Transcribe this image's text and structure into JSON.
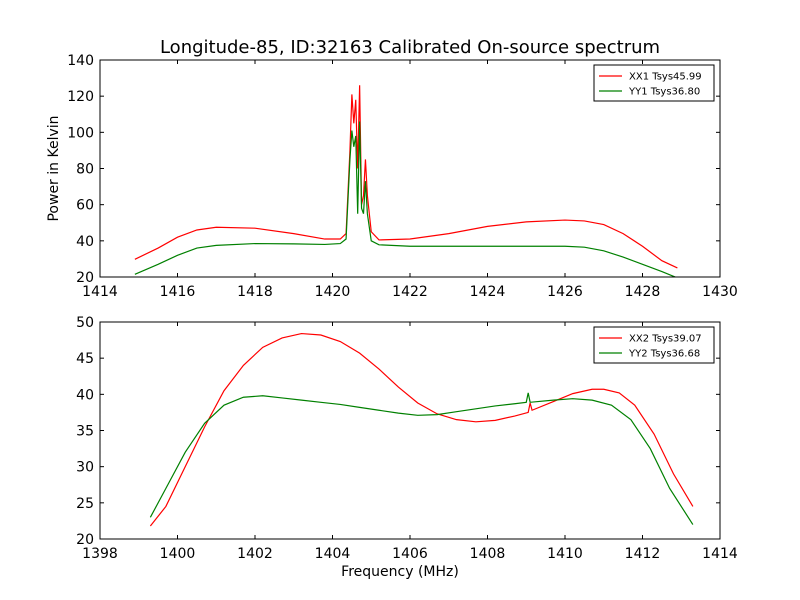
{
  "figure": {
    "title": "Longitude-85, ID:32163 Calibrated On-source spectrum"
  },
  "chart_data": [
    {
      "type": "line",
      "title": "Longitude-85, ID:32163 Calibrated On-source spectrum",
      "xlabel": "",
      "ylabel": "Power in Kelvin",
      "xlim": [
        1414,
        1430
      ],
      "ylim": [
        20,
        140
      ],
      "xticks": [
        1414,
        1416,
        1418,
        1420,
        1422,
        1424,
        1426,
        1428,
        1430
      ],
      "yticks": [
        20,
        40,
        60,
        80,
        100,
        120,
        140
      ],
      "grid": false,
      "legend": "top-right",
      "series": [
        {
          "name": "XX1 Tsys45.99",
          "color": "#ff0000",
          "points": [
            [
              1414.9,
              29.8
            ],
            [
              1415.5,
              36
            ],
            [
              1416,
              42
            ],
            [
              1416.5,
              46
            ],
            [
              1417,
              47.5
            ],
            [
              1418,
              47
            ],
            [
              1419,
              44
            ],
            [
              1419.8,
              41
            ],
            [
              1420.2,
              41
            ],
            [
              1420.35,
              44
            ],
            [
              1420.45,
              90
            ],
            [
              1420.5,
              121
            ],
            [
              1420.55,
              105
            ],
            [
              1420.6,
              118
            ],
            [
              1420.65,
              80
            ],
            [
              1420.7,
              126
            ],
            [
              1420.75,
              60
            ],
            [
              1420.8,
              65
            ],
            [
              1420.85,
              85
            ],
            [
              1420.9,
              65
            ],
            [
              1421,
              45
            ],
            [
              1421.2,
              40.5
            ],
            [
              1422,
              41
            ],
            [
              1423,
              44
            ],
            [
              1424,
              48
            ],
            [
              1425,
              50.5
            ],
            [
              1426,
              51.5
            ],
            [
              1426.5,
              51
            ],
            [
              1427,
              49
            ],
            [
              1427.5,
              44
            ],
            [
              1428,
              37
            ],
            [
              1428.5,
              29
            ],
            [
              1428.9,
              25
            ]
          ]
        },
        {
          "name": "YY1 Tsys36.80",
          "color": "#008000",
          "points": [
            [
              1414.9,
              21.5
            ],
            [
              1415.5,
              27
            ],
            [
              1416,
              32
            ],
            [
              1416.5,
              36
            ],
            [
              1417,
              37.5
            ],
            [
              1418,
              38.5
            ],
            [
              1419,
              38.3
            ],
            [
              1419.8,
              38
            ],
            [
              1420.2,
              38.5
            ],
            [
              1420.35,
              41
            ],
            [
              1420.45,
              85
            ],
            [
              1420.5,
              101
            ],
            [
              1420.55,
              92
            ],
            [
              1420.6,
              98
            ],
            [
              1420.65,
              55
            ],
            [
              1420.7,
              106
            ],
            [
              1420.75,
              58
            ],
            [
              1420.8,
              55
            ],
            [
              1420.85,
              73
            ],
            [
              1420.9,
              55
            ],
            [
              1421,
              40
            ],
            [
              1421.2,
              37.8
            ],
            [
              1422,
              37
            ],
            [
              1424,
              37
            ],
            [
              1426,
              37
            ],
            [
              1426.5,
              36.5
            ],
            [
              1427,
              34.5
            ],
            [
              1427.5,
              31
            ],
            [
              1428,
              27
            ],
            [
              1428.5,
              23
            ],
            [
              1428.9,
              19.5
            ]
          ]
        }
      ]
    },
    {
      "type": "line",
      "title": "",
      "xlabel": "Frequency (MHz)",
      "ylabel": "",
      "xlim": [
        1398,
        1414
      ],
      "ylim": [
        20,
        50
      ],
      "xticks": [
        1398,
        1400,
        1402,
        1404,
        1406,
        1408,
        1410,
        1412,
        1414
      ],
      "yticks": [
        20,
        25,
        30,
        35,
        40,
        45,
        50
      ],
      "grid": false,
      "legend": "top-right",
      "series": [
        {
          "name": "XX2 Tsys39.07",
          "color": "#ff0000",
          "points": [
            [
              1399.3,
              21.8
            ],
            [
              1399.7,
              24.5
            ],
            [
              1400.2,
              30
            ],
            [
              1400.7,
              35.5
            ],
            [
              1401.2,
              40.5
            ],
            [
              1401.7,
              44
            ],
            [
              1402.2,
              46.5
            ],
            [
              1402.7,
              47.8
            ],
            [
              1403.2,
              48.4
            ],
            [
              1403.7,
              48.2
            ],
            [
              1404.2,
              47.3
            ],
            [
              1404.7,
              45.7
            ],
            [
              1405.2,
              43.5
            ],
            [
              1405.7,
              41
            ],
            [
              1406.2,
              38.8
            ],
            [
              1406.7,
              37.3
            ],
            [
              1407.2,
              36.5
            ],
            [
              1407.7,
              36.2
            ],
            [
              1408.2,
              36.4
            ],
            [
              1408.7,
              37
            ],
            [
              1409.05,
              37.5
            ],
            [
              1409.1,
              38.8
            ],
            [
              1409.15,
              37.8
            ],
            [
              1409.7,
              39
            ],
            [
              1410.2,
              40.1
            ],
            [
              1410.7,
              40.7
            ],
            [
              1411,
              40.7
            ],
            [
              1411.4,
              40.2
            ],
            [
              1411.8,
              38.5
            ],
            [
              1412.3,
              34.5
            ],
            [
              1412.8,
              29
            ],
            [
              1413.3,
              24.5
            ]
          ]
        },
        {
          "name": "YY2 Tsys36.68",
          "color": "#008000",
          "points": [
            [
              1399.3,
              23
            ],
            [
              1399.7,
              27
            ],
            [
              1400.2,
              32
            ],
            [
              1400.7,
              36
            ],
            [
              1401.2,
              38.5
            ],
            [
              1401.7,
              39.6
            ],
            [
              1402.2,
              39.8
            ],
            [
              1402.7,
              39.5
            ],
            [
              1403.2,
              39.2
            ],
            [
              1403.7,
              38.9
            ],
            [
              1404.2,
              38.6
            ],
            [
              1404.7,
              38.2
            ],
            [
              1405.2,
              37.8
            ],
            [
              1405.7,
              37.4
            ],
            [
              1406.2,
              37.1
            ],
            [
              1406.7,
              37.2
            ],
            [
              1407.2,
              37.6
            ],
            [
              1407.7,
              38
            ],
            [
              1408.2,
              38.4
            ],
            [
              1408.7,
              38.7
            ],
            [
              1409.0,
              38.9
            ],
            [
              1409.05,
              40.2
            ],
            [
              1409.1,
              38.9
            ],
            [
              1409.7,
              39.2
            ],
            [
              1410.2,
              39.4
            ],
            [
              1410.7,
              39.2
            ],
            [
              1411.2,
              38.5
            ],
            [
              1411.7,
              36.5
            ],
            [
              1412.2,
              32.5
            ],
            [
              1412.7,
              27
            ],
            [
              1413.3,
              22
            ]
          ]
        }
      ]
    }
  ]
}
